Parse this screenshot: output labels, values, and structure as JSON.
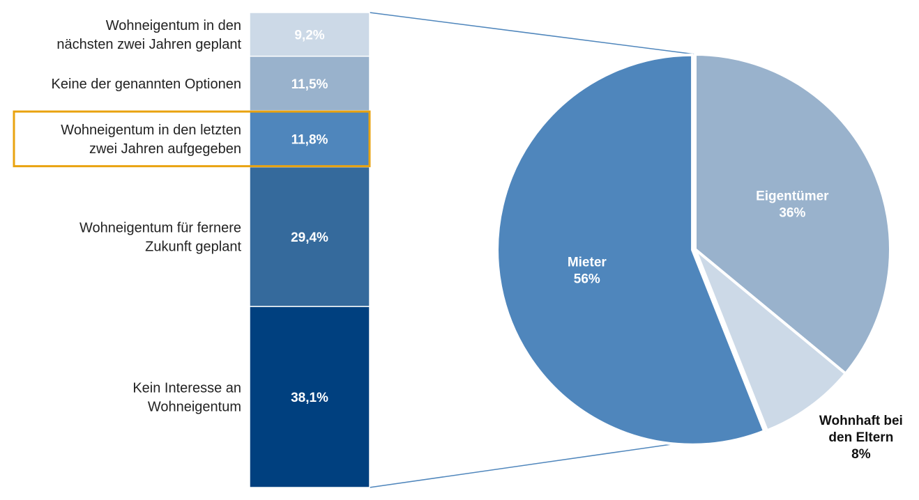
{
  "chart_data": [
    {
      "type": "bar",
      "stacked": true,
      "orientation": "vertical",
      "categories": [
        "Wohneigentum in den nächsten zwei Jahren geplant",
        "Keine der genannten Optionen",
        "Wohneigentum in den letzten zwei Jahren aufgegeben",
        "Wohneigentum für fernere Zukunft geplant",
        "Kein Interesse an Wohneigentum"
      ],
      "category_lines": [
        [
          "Wohneigentum in den",
          "nächsten zwei Jahren geplant"
        ],
        [
          "Keine der genannten Optionen"
        ],
        [
          "Wohneigentum in den letzten",
          "zwei Jahren aufgegeben"
        ],
        [
          "Wohneigentum für fernere",
          "Zukunft geplant"
        ],
        [
          "Kein Interesse an",
          "Wohneigentum"
        ]
      ],
      "values": [
        9.2,
        11.5,
        11.8,
        29.4,
        38.1
      ],
      "data_labels": [
        "9,2%",
        "11,5%",
        "11,8%",
        "29,4%",
        "38,1%"
      ],
      "colors": [
        "#ccd9e7",
        "#99b2cc",
        "#4f86bc",
        "#356a9c",
        "#00407f"
      ],
      "highlighted": "Wohneigentum in den letzten zwei Jahren aufgegeben",
      "highlight_color": "#e9a310"
    },
    {
      "type": "pie",
      "categories": [
        "Eigentümer",
        "Wohnhaft bei den Eltern",
        "Mieter"
      ],
      "category_lines": [
        [
          "Eigentümer"
        ],
        [
          "Wohnhaft bei",
          "den Eltern"
        ],
        [
          "Mieter"
        ]
      ],
      "values": [
        36,
        8,
        56
      ],
      "data_labels": [
        "36%",
        "8%",
        "56%"
      ],
      "colors": [
        "#99b2cc",
        "#ccd9e7",
        "#4f86bc"
      ],
      "exploded_slice": "Mieter",
      "connector_color": "#4f86bc"
    }
  ]
}
